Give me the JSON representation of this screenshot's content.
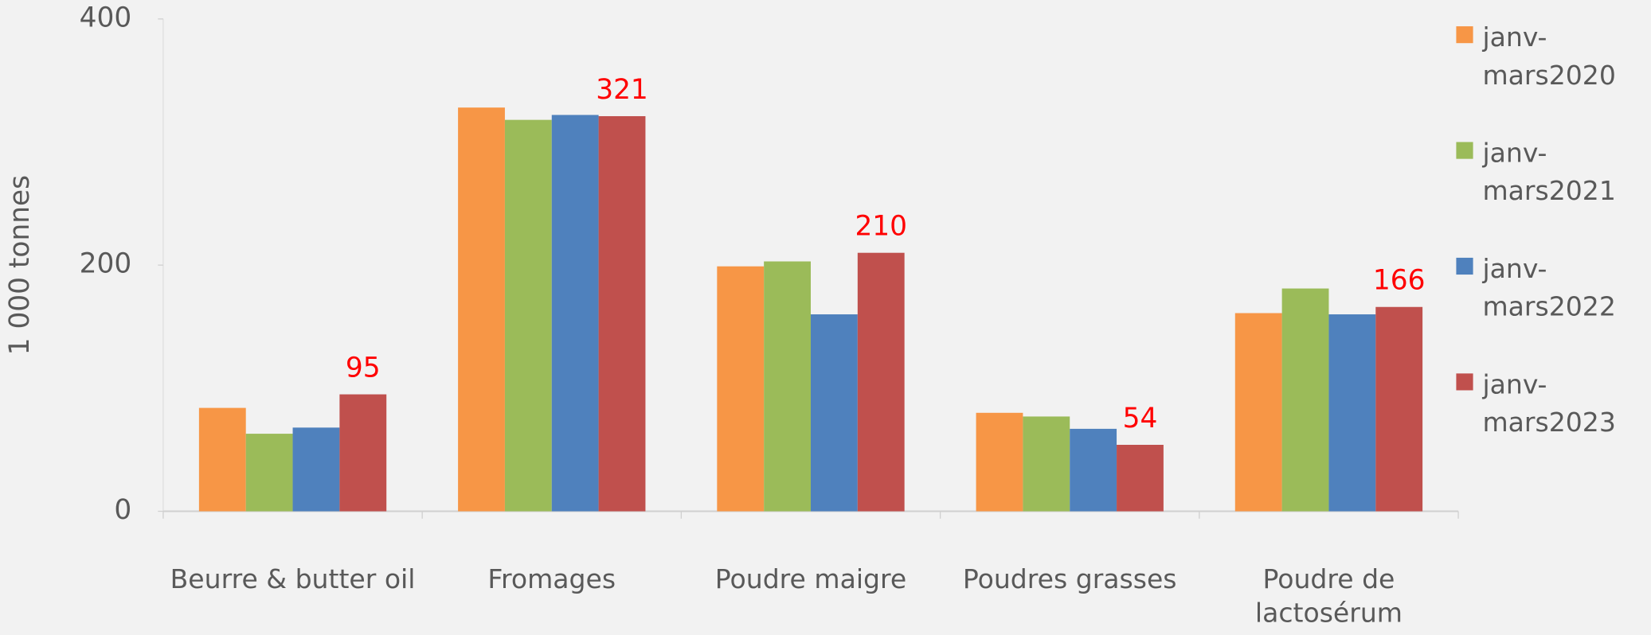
{
  "chart_data": {
    "type": "bar",
    "y_label": "1 000 tonnes",
    "categories": [
      "Beurre & butter oil",
      "Fromages",
      "Poudre maigre",
      "Poudres grasses",
      "Poudre de lactosérum"
    ],
    "series": [
      {
        "name": "janv-mars2020",
        "color": "#f79646",
        "values": [
          84,
          328,
          199,
          80,
          161
        ]
      },
      {
        "name": "janv-mars2021",
        "color": "#9bbb59",
        "values": [
          63,
          318,
          203,
          77,
          181
        ]
      },
      {
        "name": "janv-mars2022",
        "color": "#4f81bd",
        "values": [
          68,
          322,
          160,
          67,
          160
        ]
      },
      {
        "name": "janv-mars2023",
        "color": "#c0504d",
        "values": [
          95,
          321,
          210,
          54,
          166
        ],
        "show_labels": true,
        "label_color": "#ff0000"
      }
    ],
    "ylim": [
      0,
      400
    ],
    "yticks": [
      0,
      200,
      400
    ],
    "legend": "right"
  }
}
